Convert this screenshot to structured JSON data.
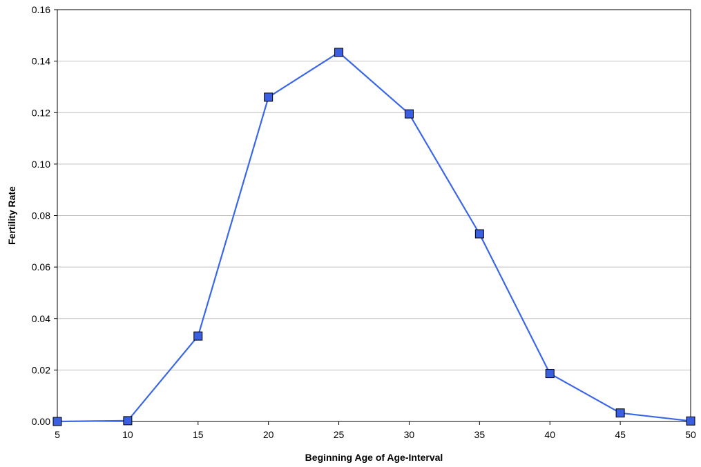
{
  "chart_data": {
    "type": "line",
    "title": "",
    "xlabel": "Beginning Age of Age-Interval",
    "ylabel": "Fertility Rate",
    "x": [
      5,
      10,
      15,
      20,
      25,
      30,
      35,
      40,
      45,
      50
    ],
    "x_tick_labels": [
      "5",
      "10",
      "15",
      "20",
      "25",
      "30",
      "35",
      "40",
      "45",
      "50"
    ],
    "y_tick_values": [
      0,
      0.02,
      0.04,
      0.06,
      0.08,
      0.1,
      0.12,
      0.14,
      0.16
    ],
    "y_tick_labels": [
      "0.00",
      "0.02",
      "0.04",
      "0.06",
      "0.08",
      "0.10",
      "0.12",
      "0.14",
      "0.16"
    ],
    "series": [
      {
        "values": [
          0.0,
          0.0003,
          0.0332,
          0.126,
          0.1434,
          0.1195,
          0.0729,
          0.0186,
          0.0033,
          0.0002
        ]
      }
    ],
    "xlim": [
      5,
      50
    ],
    "ylim": [
      0,
      0.16
    ],
    "grid": "horizontal",
    "legend": "none",
    "colors": {
      "line": "#3a66e8",
      "marker_fill": "#3a5fe0",
      "marker_stroke": "#000000",
      "grid": "#c0c0c0",
      "axis": "#000000"
    }
  }
}
